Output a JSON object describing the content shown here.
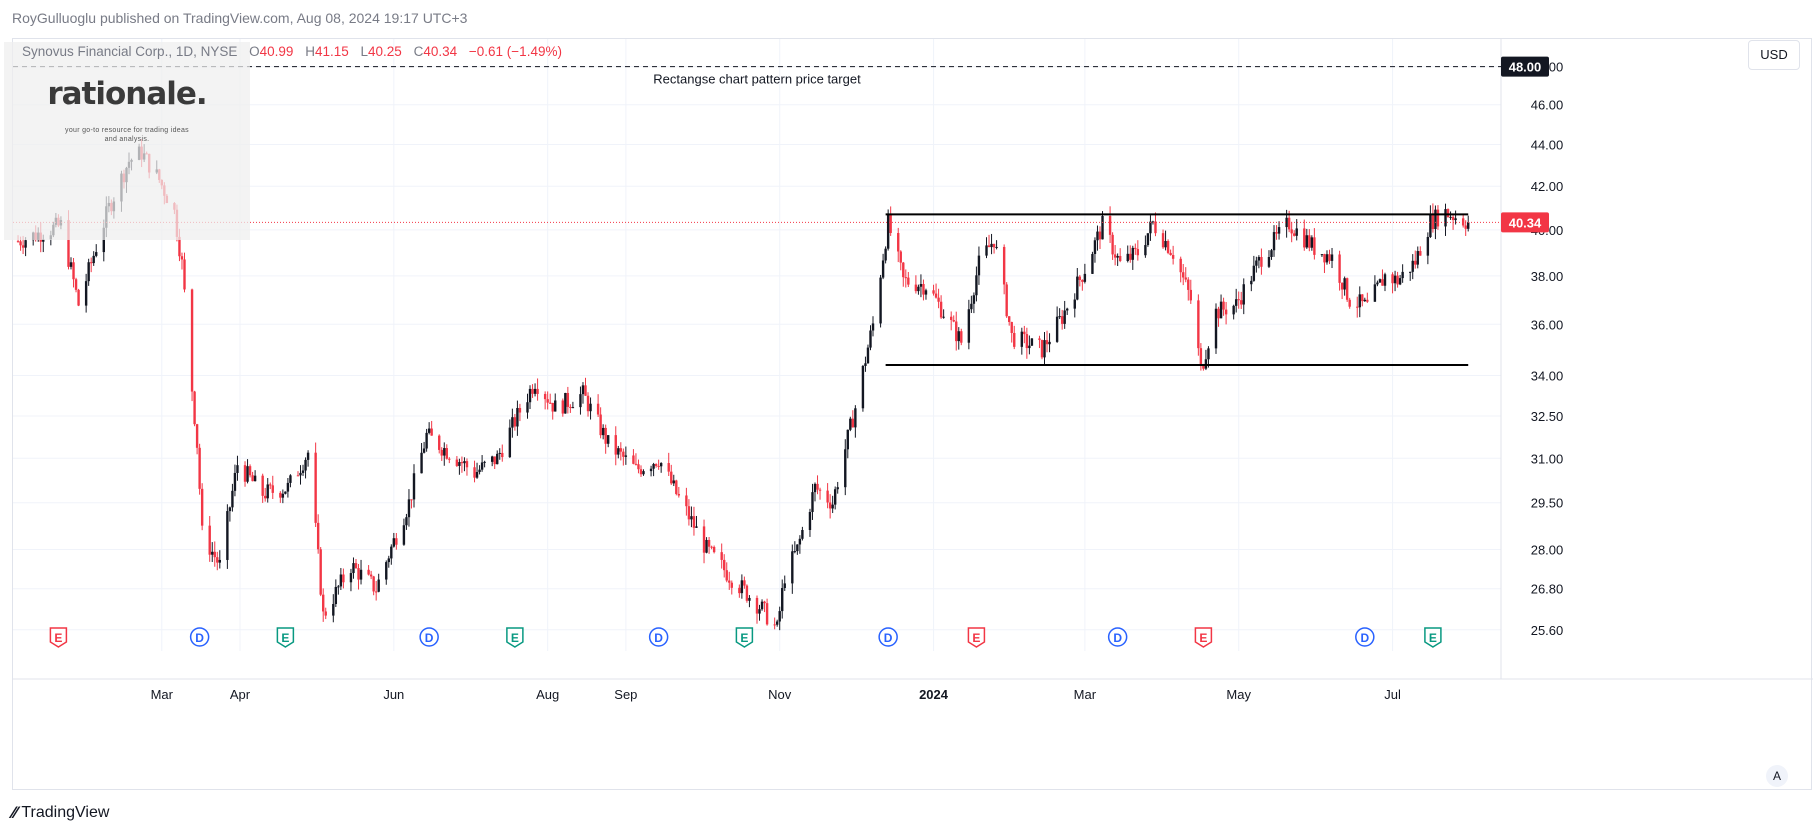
{
  "published": "RoyGulluoglu published on TradingView.com, Aug 08, 2024 19:17 UTC+3",
  "symbol": "Synovus Financial Corp., 1D, NYSE",
  "ohlc": {
    "o_key": "O",
    "o": "40.99",
    "h_key": "H",
    "h": "41.15",
    "l_key": "L",
    "l": "40.25",
    "c_key": "C",
    "c": "40.34",
    "change": "−0.61 (−1.49%)"
  },
  "currency": "USD",
  "logo": {
    "name": "rationale.",
    "tagline": "your go-to resource for trading ideas and analysis."
  },
  "footer": {
    "brand": "TradingView",
    "icon": "tv-logo-icon"
  },
  "auto_button": "A",
  "colors": {
    "up": "#131722",
    "down": "#f23645",
    "grid": "#f0f3fa",
    "price_line": "#f23645"
  },
  "chart_data": {
    "type": "candlestick",
    "title": "Synovus Financial Corp., 1D, NYSE",
    "y_axis_ticks": [
      "48.00",
      "46.00",
      "44.00",
      "42.00",
      "40.00",
      "38.00",
      "36.00",
      "34.00",
      "32.50",
      "31.00",
      "29.50",
      "28.00",
      "26.80",
      "25.60"
    ],
    "y_scale": "log",
    "ylim": [
      25.0,
      49.5
    ],
    "x_axis_ticks": [
      "Mar",
      "Apr",
      "Jun",
      "Aug",
      "Sep",
      "Nov",
      "2024",
      "Mar",
      "May",
      "Jul"
    ],
    "x_axis_bold": [
      "2024"
    ],
    "last_price": 40.34,
    "last_price_label": "40.34",
    "target": {
      "value": 48.0,
      "label": "48.00",
      "annotation": "Rectangse chart pattern price target"
    },
    "rectangle": {
      "resistance": 40.7,
      "support": 34.4,
      "start": "2023-12-13",
      "end": "2024-07-31"
    },
    "events": [
      {
        "kind": "E",
        "date": "2023-01-19"
      },
      {
        "kind": "D",
        "date": "2023-03-16"
      },
      {
        "kind": "E",
        "date": "2023-04-19"
      },
      {
        "kind": "D",
        "date": "2023-06-15"
      },
      {
        "kind": "E",
        "date": "2023-07-19"
      },
      {
        "kind": "D",
        "date": "2023-09-14"
      },
      {
        "kind": "E",
        "date": "2023-10-18"
      },
      {
        "kind": "D",
        "date": "2023-12-14"
      },
      {
        "kind": "E",
        "date": "2024-01-18"
      },
      {
        "kind": "D",
        "date": "2024-03-14"
      },
      {
        "kind": "E",
        "date": "2024-04-17"
      },
      {
        "kind": "D",
        "date": "2024-06-20"
      },
      {
        "kind": "E",
        "date": "2024-07-17"
      }
    ],
    "series": [
      {
        "date": "2023-01-03",
        "close": 39.5
      },
      {
        "date": "2023-01-20",
        "close": 40.2
      },
      {
        "date": "2023-01-27",
        "close": 36.8
      },
      {
        "date": "2023-02-08",
        "close": 41.0
      },
      {
        "date": "2023-02-16",
        "close": 43.2
      },
      {
        "date": "2023-02-21",
        "close": 43.6
      },
      {
        "date": "2023-02-28",
        "close": 42.3
      },
      {
        "date": "2023-03-06",
        "close": 40.8
      },
      {
        "date": "2023-03-09",
        "close": 38.5
      },
      {
        "date": "2023-03-13",
        "close": 33.5
      },
      {
        "date": "2023-03-15",
        "close": 31.5
      },
      {
        "date": "2023-03-17",
        "close": 28.5
      },
      {
        "date": "2023-03-24",
        "close": 27.5
      },
      {
        "date": "2023-03-31",
        "close": 30.8
      },
      {
        "date": "2023-04-10",
        "close": 29.8
      },
      {
        "date": "2023-04-20",
        "close": 30.0
      },
      {
        "date": "2023-04-28",
        "close": 31.2
      },
      {
        "date": "2023-05-04",
        "close": 26.0
      },
      {
        "date": "2023-05-15",
        "close": 27.5
      },
      {
        "date": "2023-05-25",
        "close": 26.8
      },
      {
        "date": "2023-06-07",
        "close": 29.5
      },
      {
        "date": "2023-06-14",
        "close": 31.8
      },
      {
        "date": "2023-06-26",
        "close": 31.0
      },
      {
        "date": "2023-07-03",
        "close": 30.5
      },
      {
        "date": "2023-07-12",
        "close": 31.0
      },
      {
        "date": "2023-07-20",
        "close": 32.5
      },
      {
        "date": "2023-07-27",
        "close": 33.8
      },
      {
        "date": "2023-08-04",
        "close": 32.8
      },
      {
        "date": "2023-08-15",
        "close": 33.3
      },
      {
        "date": "2023-08-25",
        "close": 31.5
      },
      {
        "date": "2023-09-05",
        "close": 30.6
      },
      {
        "date": "2023-09-14",
        "close": 31.0
      },
      {
        "date": "2023-09-21",
        "close": 29.8
      },
      {
        "date": "2023-10-03",
        "close": 28.0
      },
      {
        "date": "2023-10-12",
        "close": 27.2
      },
      {
        "date": "2023-10-25",
        "close": 26.2
      },
      {
        "date": "2023-10-31",
        "close": 25.6
      },
      {
        "date": "2023-11-03",
        "close": 27.2
      },
      {
        "date": "2023-11-08",
        "close": 28.0
      },
      {
        "date": "2023-11-15",
        "close": 30.0
      },
      {
        "date": "2023-11-22",
        "close": 29.5
      },
      {
        "date": "2023-12-01",
        "close": 32.8
      },
      {
        "date": "2023-12-08",
        "close": 36.0
      },
      {
        "date": "2023-12-14",
        "close": 40.3
      },
      {
        "date": "2023-12-20",
        "close": 37.8
      },
      {
        "date": "2023-12-29",
        "close": 37.6
      },
      {
        "date": "2024-01-05",
        "close": 36.5
      },
      {
        "date": "2024-01-12",
        "close": 35.3
      },
      {
        "date": "2024-01-19",
        "close": 38.5
      },
      {
        "date": "2024-01-25",
        "close": 39.6
      },
      {
        "date": "2024-02-01",
        "close": 35.5
      },
      {
        "date": "2024-02-13",
        "close": 35.0
      },
      {
        "date": "2024-02-21",
        "close": 36.3
      },
      {
        "date": "2024-03-01",
        "close": 38.3
      },
      {
        "date": "2024-03-08",
        "close": 40.2
      },
      {
        "date": "2024-03-15",
        "close": 38.5
      },
      {
        "date": "2024-03-22",
        "close": 39.0
      },
      {
        "date": "2024-03-28",
        "close": 40.3
      },
      {
        "date": "2024-04-05",
        "close": 39.0
      },
      {
        "date": "2024-04-12",
        "close": 37.0
      },
      {
        "date": "2024-04-16",
        "close": 34.2
      },
      {
        "date": "2024-04-22",
        "close": 36.5
      },
      {
        "date": "2024-04-30",
        "close": 36.8
      },
      {
        "date": "2024-05-10",
        "close": 38.8
      },
      {
        "date": "2024-05-21",
        "close": 40.3
      },
      {
        "date": "2024-05-31",
        "close": 39.2
      },
      {
        "date": "2024-06-07",
        "close": 38.8
      },
      {
        "date": "2024-06-14",
        "close": 37.0
      },
      {
        "date": "2024-06-21",
        "close": 36.7
      },
      {
        "date": "2024-06-28",
        "close": 38.0
      },
      {
        "date": "2024-07-03",
        "close": 37.8
      },
      {
        "date": "2024-07-10",
        "close": 38.6
      },
      {
        "date": "2024-07-16",
        "close": 40.4
      },
      {
        "date": "2024-07-22",
        "close": 40.8
      },
      {
        "date": "2024-07-31",
        "close": 40.34
      }
    ]
  }
}
